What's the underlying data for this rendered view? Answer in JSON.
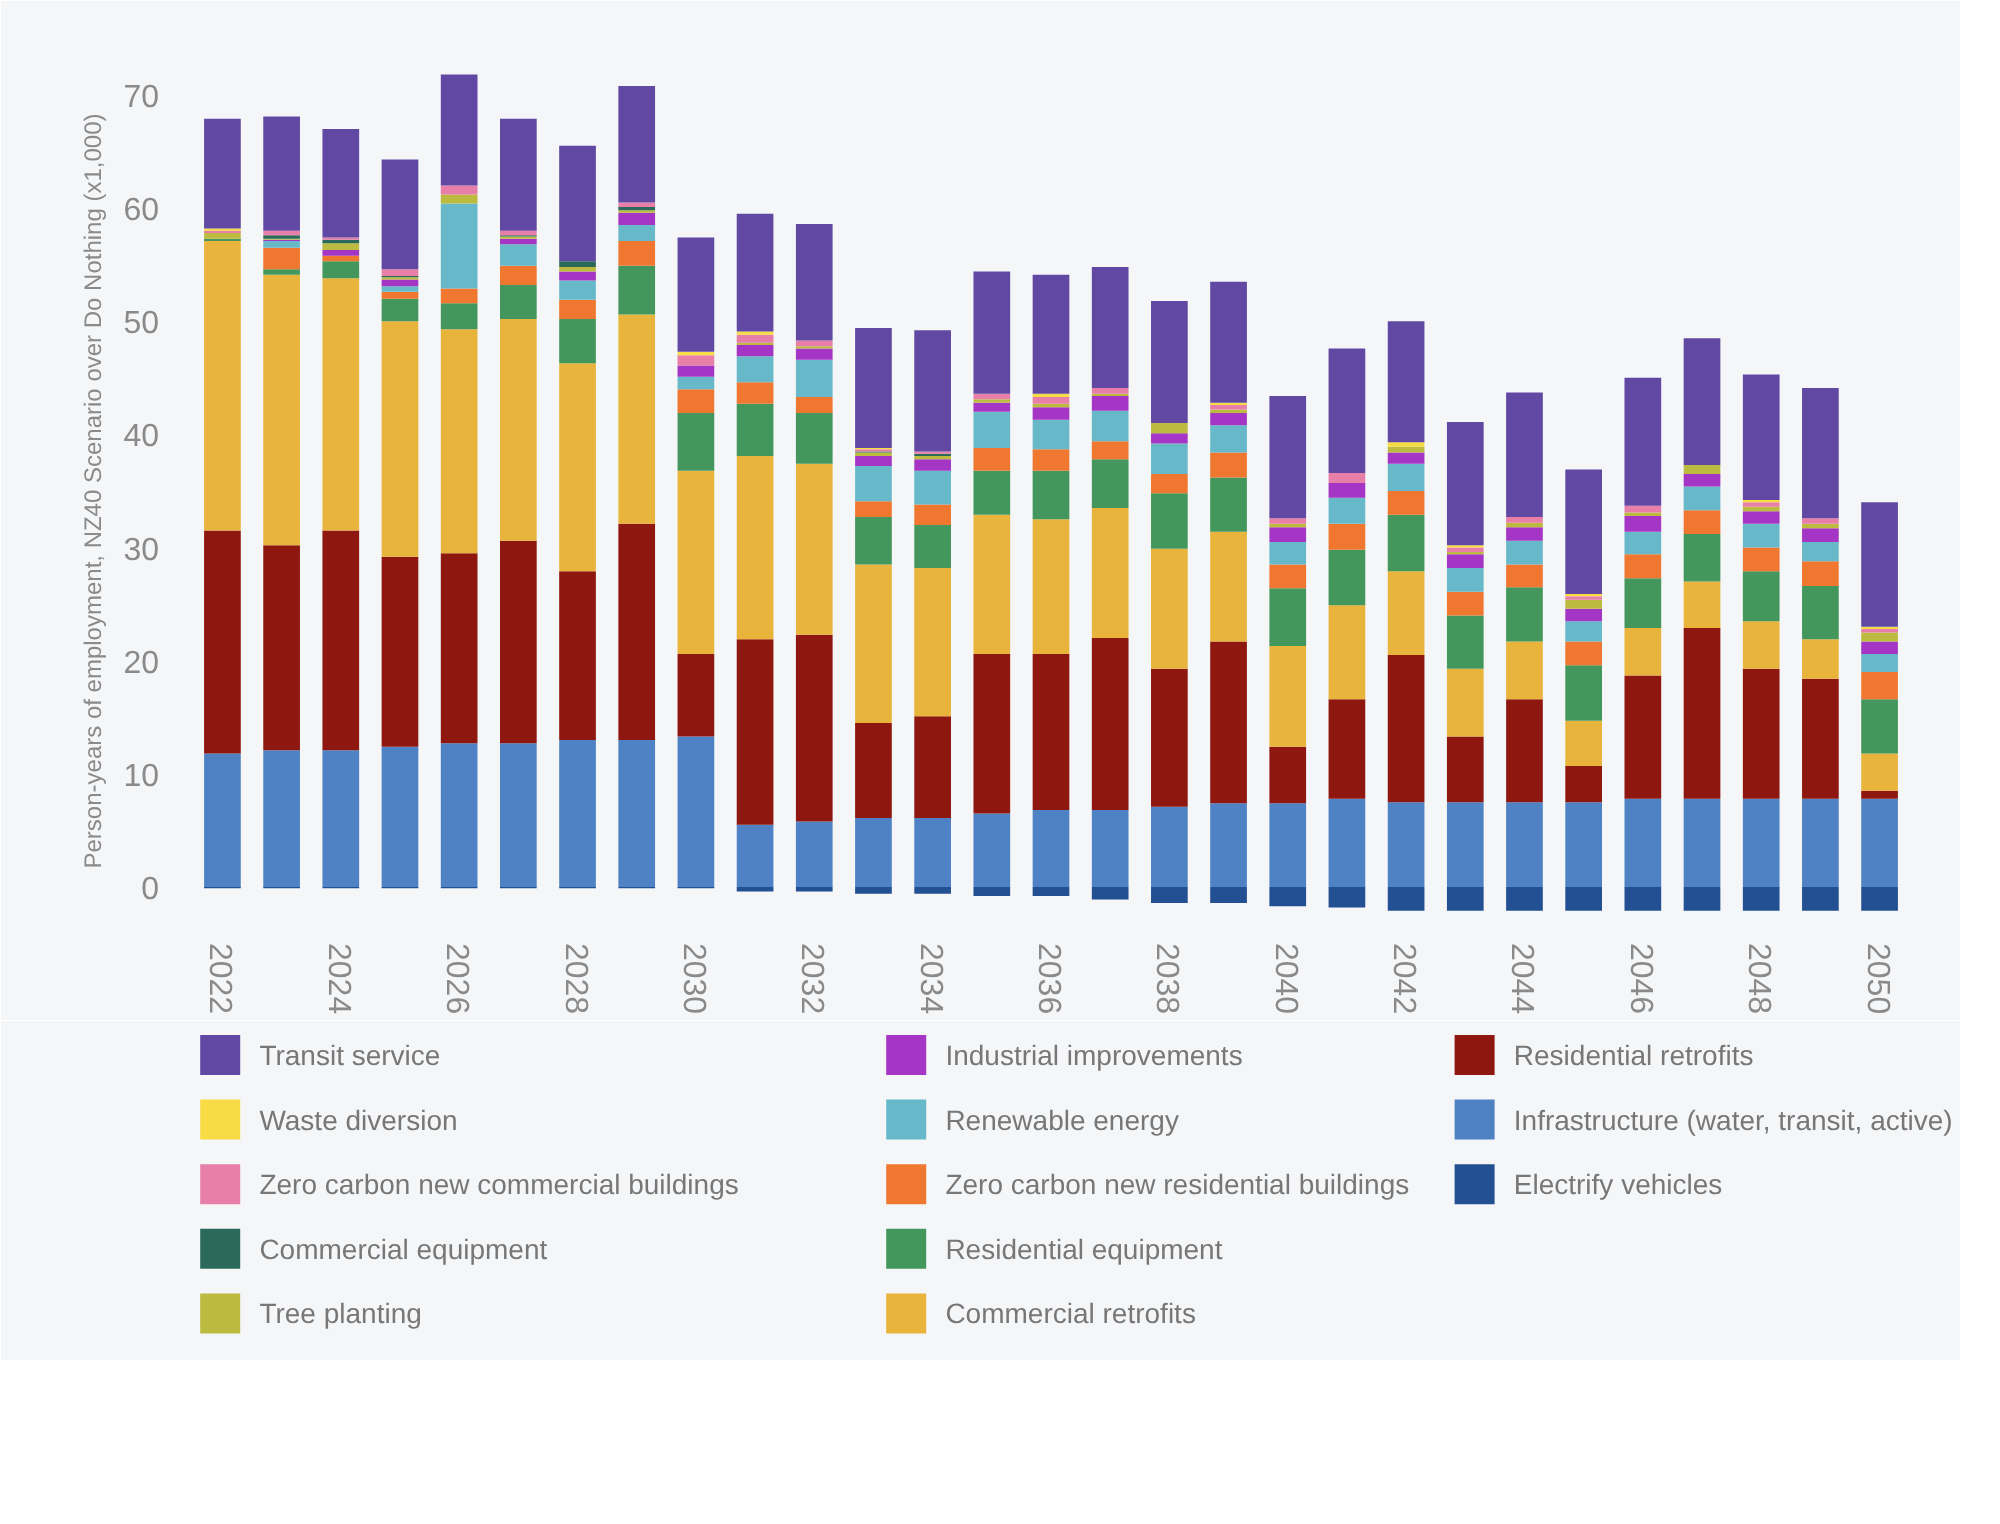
{
  "chart_data": {
    "type": "bar",
    "stacked": true,
    "ylabel": "Person-years of employment, NZ40 Scenario over Do Nothing (x1,000)",
    "categories": [
      "2022",
      null,
      "2024",
      null,
      "2026",
      null,
      "2028",
      null,
      "2030",
      null,
      "2032",
      null,
      "2034",
      null,
      "2036",
      null,
      "2038",
      null,
      "2040",
      null,
      "2042",
      null,
      "2044",
      null,
      "2046",
      null,
      "2048",
      null,
      "2050"
    ],
    "ylim": [
      -3,
      73
    ],
    "yticks": [
      0,
      10,
      20,
      30,
      40,
      50,
      60,
      70
    ],
    "grid": false,
    "legend": "bottom",
    "series": [
      {
        "name": "Electrify vehicles",
        "color": "#234f93",
        "values": [
          -0.1,
          -0.1,
          -0.1,
          -0.1,
          -0.1,
          -0.1,
          -0.1,
          -0.1,
          -0.1,
          -0.4,
          -0.4,
          -0.6,
          -0.6,
          -0.8,
          -0.8,
          -1.1,
          -1.4,
          -1.4,
          -1.7,
          -1.8,
          -2.1,
          -2.1,
          -2.1,
          -2.1,
          -2.1,
          -2.1,
          -2.1,
          -2.1,
          -2.1
        ]
      },
      {
        "name": "Infrastructure (water, transit, active)",
        "color": "#4f82c4",
        "values": [
          11.8,
          12.1,
          12.1,
          12.4,
          12.7,
          12.7,
          13.0,
          13.0,
          13.3,
          5.5,
          5.8,
          6.1,
          6.1,
          6.5,
          6.8,
          6.8,
          7.1,
          7.4,
          7.4,
          7.8,
          7.5,
          7.5,
          7.5,
          7.5,
          7.8,
          7.8,
          7.8,
          7.8,
          7.8
        ]
      },
      {
        "name": "Residential retrofits",
        "color": "#8e1710",
        "values": [
          19.7,
          18.1,
          19.4,
          16.8,
          16.8,
          17.9,
          14.9,
          19.1,
          7.3,
          16.4,
          16.5,
          8.4,
          9.0,
          14.1,
          13.8,
          15.2,
          12.2,
          14.3,
          5.0,
          8.8,
          13.0,
          5.8,
          9.1,
          3.2,
          10.9,
          15.1,
          11.5,
          10.6,
          0.7
        ]
      },
      {
        "name": "Commercial retrofits",
        "color": "#e9b43c",
        "values": [
          25.6,
          23.9,
          22.3,
          20.8,
          19.8,
          19.6,
          18.4,
          18.5,
          16.2,
          16.2,
          15.1,
          14.0,
          13.1,
          12.3,
          11.9,
          11.5,
          10.6,
          9.7,
          8.9,
          8.3,
          7.4,
          6.0,
          5.1,
          4.0,
          4.2,
          4.1,
          4.2,
          3.5,
          3.3
        ]
      },
      {
        "name": "Residential equipment",
        "color": "#44975c",
        "values": [
          0.2,
          0.5,
          1.5,
          2.0,
          2.3,
          3.0,
          3.9,
          4.3,
          5.1,
          4.6,
          4.5,
          4.2,
          3.8,
          3.9,
          4.3,
          4.3,
          4.9,
          4.8,
          5.1,
          4.9,
          5.0,
          4.7,
          4.8,
          4.9,
          4.4,
          4.2,
          4.4,
          4.7,
          4.8
        ]
      },
      {
        "name": "Zero carbon new residential buildings",
        "color": "#f07730",
        "values": [
          0,
          1.9,
          0.5,
          0.6,
          1.3,
          1.7,
          1.7,
          2.2,
          2.1,
          1.9,
          1.4,
          1.4,
          1.8,
          2.0,
          1.9,
          1.6,
          1.7,
          2.2,
          2.1,
          2.3,
          2.1,
          2.1,
          2.0,
          2.1,
          2.1,
          2.1,
          2.1,
          2.2,
          2.4
        ]
      },
      {
        "name": "Renewable energy",
        "color": "#67b9c9",
        "values": [
          0,
          0.6,
          0,
          0.5,
          7.5,
          1.9,
          1.7,
          1.4,
          1.1,
          2.3,
          3.3,
          3.1,
          3.0,
          3.2,
          2.6,
          2.7,
          2.7,
          2.4,
          2.0,
          2.3,
          2.4,
          2.1,
          2.1,
          1.8,
          2.0,
          2.1,
          2.1,
          1.7,
          1.6
        ]
      },
      {
        "name": "Industrial improvements",
        "color": "#a535c4",
        "values": [
          0,
          0.1,
          0.5,
          0.6,
          0,
          0.5,
          0.8,
          1.1,
          1.0,
          1.0,
          1.0,
          0.9,
          1.0,
          0.8,
          1.1,
          1.3,
          0.9,
          1.1,
          1.3,
          1.3,
          1.0,
          1.2,
          1.2,
          1.1,
          1.4,
          1.1,
          1.1,
          1.2,
          1.1
        ]
      },
      {
        "name": "Tree planting",
        "color": "#bdbb3f",
        "values": [
          0.5,
          0.1,
          0.6,
          0.2,
          0.8,
          0.2,
          0.4,
          0.2,
          0,
          0.2,
          0.2,
          0.3,
          0.3,
          0.3,
          0.3,
          0.2,
          0.9,
          0.3,
          0.3,
          0,
          0.5,
          0.2,
          0.4,
          0.8,
          0.3,
          0.8,
          0.4,
          0.4,
          0.8
        ]
      },
      {
        "name": "Commercial equipment",
        "color": "#2b6a5a",
        "values": [
          0,
          0.3,
          0.3,
          0.1,
          0,
          0.1,
          0.5,
          0.3,
          0,
          0,
          0,
          0.1,
          0.2,
          0,
          0,
          0,
          0,
          0,
          0,
          0,
          0,
          0,
          0,
          0,
          0,
          0,
          0,
          0,
          0
        ]
      },
      {
        "name": "Zero carbon new commercial buildings",
        "color": "#e87fa8",
        "values": [
          0.2,
          0.4,
          0.2,
          0.6,
          0.8,
          0.4,
          0,
          0.4,
          0.9,
          0.7,
          0.5,
          0.2,
          0.2,
          0.5,
          0.6,
          0.5,
          0,
          0.4,
          0.5,
          0.9,
          0,
          0.4,
          0.5,
          0.3,
          0.6,
          0,
          0.4,
          0.5,
          0.3
        ]
      },
      {
        "name": "Waste diversion",
        "color": "#f7dc45",
        "values": [
          0.2,
          0,
          0,
          0,
          0,
          0,
          0,
          0,
          0.3,
          0.3,
          0,
          0.1,
          0,
          0,
          0.3,
          0,
          0,
          0.2,
          0,
          0,
          0.4,
          0.2,
          0,
          0.2,
          0,
          0,
          0.2,
          0,
          0.2
        ]
      },
      {
        "name": "Transit service",
        "color": "#6048a3",
        "values": [
          9.7,
          10.1,
          9.6,
          9.7,
          9.8,
          9.9,
          10.2,
          10.3,
          10.1,
          10.4,
          10.3,
          10.6,
          10.7,
          10.8,
          10.5,
          10.7,
          10.8,
          10.7,
          10.8,
          11.0,
          10.7,
          10.9,
          11.0,
          11.0,
          11.3,
          11.2,
          11.1,
          11.5,
          11.0
        ]
      }
    ]
  }
}
